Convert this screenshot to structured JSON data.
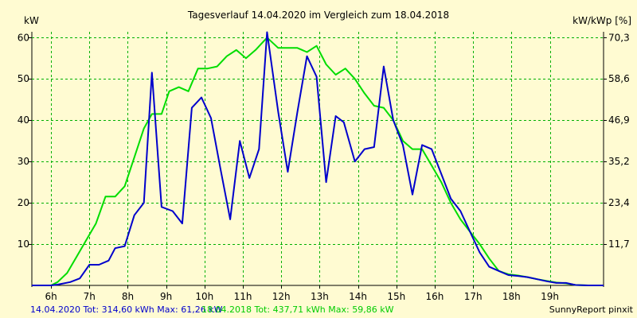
{
  "chart_data": {
    "type": "line",
    "title": "Tagesverlauf 14.04.2020 im Vergleich zum 18.04.2018",
    "ylabel_left": "kW",
    "ylabel_right": "kW/kWp [%]",
    "x_ticks": [
      "6h",
      "7h",
      "8h",
      "9h",
      "10h",
      "11h",
      "12h",
      "13h",
      "14h",
      "15h",
      "16h",
      "17h",
      "18h",
      "19h"
    ],
    "xlim": [
      5.5,
      20.4
    ],
    "ylim": [
      0,
      61.4
    ],
    "y_ticks": [
      "10",
      "20",
      "30",
      "40",
      "50",
      "60"
    ],
    "y_ticks_right": [
      "11,7",
      "23,4",
      "35,2",
      "46,9",
      "58,6",
      "70,3"
    ],
    "grid": true,
    "colors": {
      "series_2020": "#0000cc",
      "series_2018": "#00dd00",
      "grid": "#00b000",
      "background": "#fffbd2"
    },
    "series": [
      {
        "name": "14.04.2020",
        "color": "#0000cc",
        "points": [
          [
            5.5,
            0
          ],
          [
            6.0,
            0
          ],
          [
            6.17,
            0.2
          ],
          [
            6.5,
            0.8
          ],
          [
            6.75,
            1.7
          ],
          [
            7.0,
            5
          ],
          [
            7.25,
            5
          ],
          [
            7.5,
            6
          ],
          [
            7.67,
            9
          ],
          [
            7.92,
            9.5
          ],
          [
            8.17,
            17
          ],
          [
            8.42,
            20
          ],
          [
            8.63,
            51.5
          ],
          [
            8.88,
            19
          ],
          [
            9.17,
            18
          ],
          [
            9.42,
            15
          ],
          [
            9.67,
            43
          ],
          [
            9.92,
            45.5
          ],
          [
            10.17,
            40.5
          ],
          [
            10.42,
            28
          ],
          [
            10.67,
            16
          ],
          [
            10.92,
            35
          ],
          [
            11.17,
            26
          ],
          [
            11.42,
            33
          ],
          [
            11.63,
            61.3
          ],
          [
            11.92,
            42
          ],
          [
            12.17,
            27.5
          ],
          [
            12.42,
            42
          ],
          [
            12.67,
            55.5
          ],
          [
            12.92,
            50.5
          ],
          [
            13.17,
            25
          ],
          [
            13.42,
            41
          ],
          [
            13.63,
            39.5
          ],
          [
            13.92,
            30
          ],
          [
            14.17,
            33
          ],
          [
            14.42,
            33.5
          ],
          [
            14.67,
            53
          ],
          [
            14.92,
            40
          ],
          [
            15.17,
            34
          ],
          [
            15.42,
            22
          ],
          [
            15.67,
            34
          ],
          [
            15.92,
            33
          ],
          [
            16.17,
            27
          ],
          [
            16.42,
            21
          ],
          [
            16.67,
            18
          ],
          [
            16.92,
            13
          ],
          [
            17.17,
            8
          ],
          [
            17.42,
            4.5
          ],
          [
            17.67,
            3.5
          ],
          [
            17.92,
            2.5
          ],
          [
            18.17,
            2.3
          ],
          [
            18.42,
            2.0
          ],
          [
            18.67,
            1.5
          ],
          [
            18.92,
            1.0
          ],
          [
            19.17,
            0.6
          ],
          [
            19.42,
            0.6
          ],
          [
            19.67,
            0.1
          ],
          [
            20.0,
            0
          ],
          [
            20.4,
            0
          ]
        ]
      },
      {
        "name": "18.04.2018",
        "color": "#00dd00",
        "points": [
          [
            5.5,
            0
          ],
          [
            6.0,
            0
          ],
          [
            6.17,
            0.8
          ],
          [
            6.42,
            3
          ],
          [
            6.67,
            7
          ],
          [
            6.92,
            11
          ],
          [
            7.17,
            15
          ],
          [
            7.42,
            21.5
          ],
          [
            7.67,
            21.5
          ],
          [
            7.92,
            24
          ],
          [
            8.17,
            31
          ],
          [
            8.42,
            38
          ],
          [
            8.63,
            41.5
          ],
          [
            8.88,
            41.5
          ],
          [
            9.08,
            47
          ],
          [
            9.33,
            48
          ],
          [
            9.58,
            47
          ],
          [
            9.83,
            52.5
          ],
          [
            10.08,
            52.5
          ],
          [
            10.33,
            53
          ],
          [
            10.58,
            55.5
          ],
          [
            10.83,
            57
          ],
          [
            11.08,
            55
          ],
          [
            11.33,
            57
          ],
          [
            11.63,
            60
          ],
          [
            11.92,
            57.5
          ],
          [
            12.17,
            57.5
          ],
          [
            12.42,
            57.5
          ],
          [
            12.67,
            56.5
          ],
          [
            12.92,
            58
          ],
          [
            13.17,
            53.5
          ],
          [
            13.42,
            51
          ],
          [
            13.67,
            52.5
          ],
          [
            13.92,
            50
          ],
          [
            14.17,
            46.5
          ],
          [
            14.42,
            43.5
          ],
          [
            14.67,
            43
          ],
          [
            14.92,
            40
          ],
          [
            15.17,
            35
          ],
          [
            15.42,
            33
          ],
          [
            15.67,
            33
          ],
          [
            15.92,
            29
          ],
          [
            16.17,
            25
          ],
          [
            16.42,
            20
          ],
          [
            16.67,
            16
          ],
          [
            16.92,
            13
          ],
          [
            17.17,
            10
          ],
          [
            17.42,
            6.5
          ],
          [
            17.67,
            3.5
          ],
          [
            17.92,
            2.7
          ],
          [
            18.17,
            2.4
          ],
          [
            18.42,
            2.0
          ],
          [
            18.67,
            1.5
          ],
          [
            18.92,
            1.1
          ],
          [
            19.17,
            0.7
          ],
          [
            19.42,
            0.5
          ],
          [
            19.67,
            0.1
          ],
          [
            20.0,
            0
          ],
          [
            20.4,
            0
          ]
        ]
      }
    ]
  },
  "footer": {
    "left_2020": "14.04.2020 Tot: 314,60 kWh Max: 61,26 kW",
    "left_2018": "18.04.2018 Tot: 437,71 kWh Max: 59,86 kW",
    "right": "SunnyReport pinxit"
  }
}
